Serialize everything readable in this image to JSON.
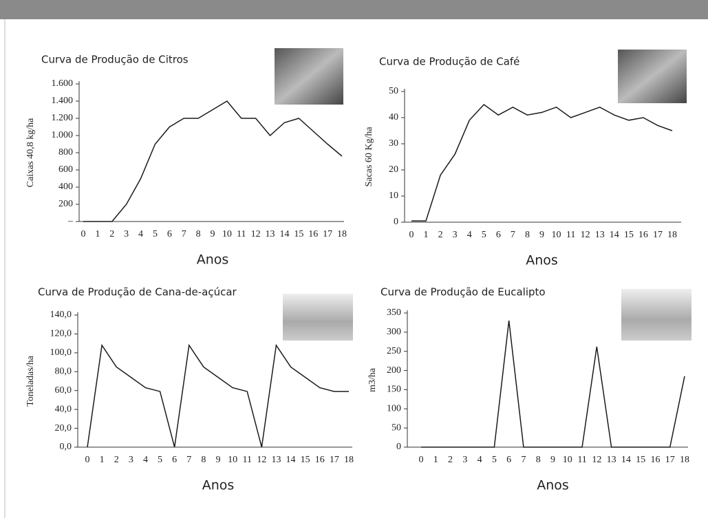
{
  "chart_data": [
    {
      "type": "line",
      "title": "Curva de Produção de Citros",
      "xlabel": "Anos",
      "ylabel": "Caixas 40,8 kg/ha",
      "categories": [
        "0",
        "1",
        "2",
        "3",
        "4",
        "5",
        "6",
        "7",
        "8",
        "9",
        "10",
        "11",
        "12",
        "13",
        "14",
        "15",
        "16",
        "17",
        "18"
      ],
      "values": [
        0,
        0,
        0,
        200,
        500,
        900,
        1100,
        1200,
        1200,
        1300,
        1400,
        1200,
        1200,
        1000,
        1150,
        1200,
        1050,
        900,
        760
      ],
      "color": "#1a1a1a",
      "ylim": [
        0,
        1600
      ],
      "yticks": [
        {
          "value": 0,
          "label": "–"
        },
        200,
        400,
        600,
        {
          "value": 800,
          "label": "800"
        },
        {
          "value": 1000,
          "label": "1.000"
        },
        {
          "value": 1200,
          "label": "1.200"
        },
        {
          "value": 1400,
          "label": "1.400"
        },
        {
          "value": 1600,
          "label": "1.600"
        }
      ]
    },
    {
      "type": "line",
      "title": "Curva de Produção de Café",
      "xlabel": "Anos",
      "ylabel": "Sacas 60 Kg/ha",
      "categories": [
        "0",
        "1",
        "2",
        "3",
        "4",
        "5",
        "6",
        "7",
        "8",
        "9",
        "10",
        "11",
        "12",
        "13",
        "14",
        "15",
        "16",
        "17",
        "18"
      ],
      "values": [
        0.5,
        0.5,
        18,
        26,
        39,
        45,
        41,
        44,
        41,
        42,
        44,
        40,
        42,
        44,
        41,
        39,
        40,
        37,
        35
      ],
      "color": "#1a1a1a",
      "ylim": [
        0,
        50
      ],
      "yticks": [
        0,
        10,
        20,
        30,
        40,
        50
      ]
    },
    {
      "type": "line",
      "title": "Curva de Produção de Cana-de-açúcar",
      "xlabel": "Anos",
      "ylabel": "Toneladas/ha",
      "categories": [
        "0",
        "1",
        "2",
        "3",
        "4",
        "5",
        "6",
        "7",
        "8",
        "9",
        "10",
        "11",
        "12",
        "13",
        "14",
        "15",
        "16",
        "17",
        "18"
      ],
      "values": [
        0,
        108,
        85,
        74,
        63,
        59,
        0,
        108,
        85,
        74,
        63,
        59,
        0,
        108,
        85,
        74,
        63,
        59,
        59
      ],
      "color": "#1a1a1a",
      "ylim": [
        0,
        140
      ],
      "yticks": [
        {
          "value": 0,
          "label": "0,0"
        },
        {
          "value": 20,
          "label": "20,0"
        },
        {
          "value": 40,
          "label": "40,0"
        },
        {
          "value": 60,
          "label": "60,0"
        },
        {
          "value": 80,
          "label": "80,0"
        },
        {
          "value": 100,
          "label": "100,0"
        },
        {
          "value": 120,
          "label": "120,0"
        },
        {
          "value": 140,
          "label": "140,0"
        }
      ]
    },
    {
      "type": "line",
      "title": "Curva de Produção de Eucalipto",
      "xlabel": "Anos",
      "ylabel": "m3/ha",
      "categories": [
        "0",
        "1",
        "2",
        "3",
        "4",
        "5",
        "6",
        "7",
        "8",
        "9",
        "10",
        "11",
        "12",
        "13",
        "14",
        "15",
        "16",
        "17",
        "18"
      ],
      "values": [
        0,
        0,
        0,
        0,
        0,
        0,
        330,
        0,
        0,
        0,
        0,
        0,
        262,
        0,
        0,
        0,
        0,
        0,
        185
      ],
      "color": "#1a1a1a",
      "ylim": [
        0,
        350
      ],
      "yticks": [
        0,
        50,
        100,
        150,
        200,
        250,
        300,
        350
      ]
    }
  ]
}
